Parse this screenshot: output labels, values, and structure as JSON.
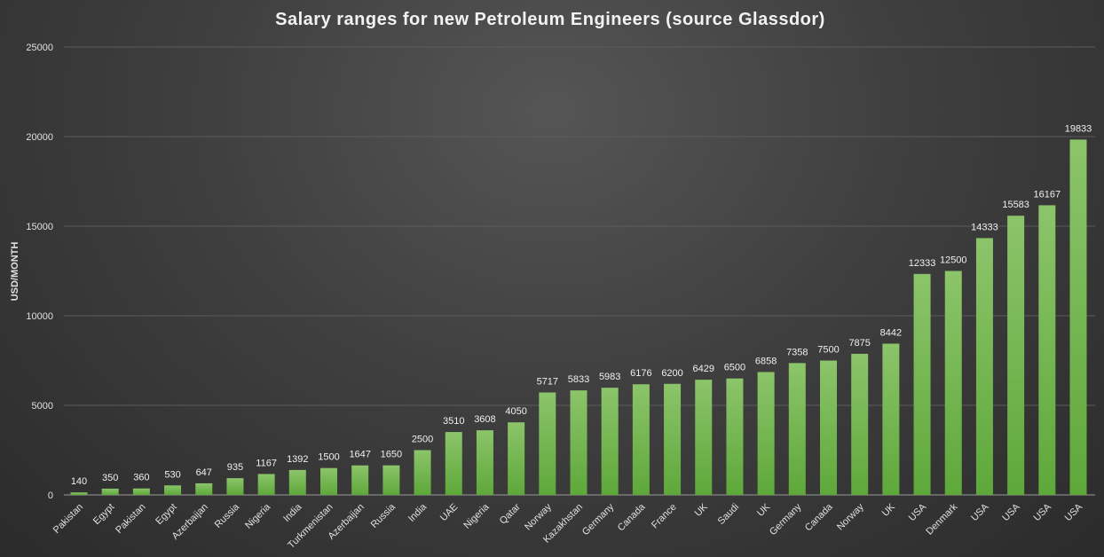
{
  "chart_data": {
    "type": "bar",
    "title": "Salary ranges for new Petroleum Engineers (source Glassdor)",
    "xlabel": "",
    "ylabel": "USD/MONTH",
    "ylim": [
      0,
      25000
    ],
    "yticks": [
      0,
      5000,
      10000,
      15000,
      20000,
      25000
    ],
    "grid": true,
    "data_labels": true,
    "bar_color": "#6fb548",
    "categories": [
      "Pakistan",
      "Egypt",
      "Pakistan",
      "Egypt",
      "Azerbaijan",
      "Russia",
      "Nigeria",
      "India",
      "Turkmenistan",
      "Azerbaijan",
      "Russia",
      "India",
      "UAE",
      "Nigeria",
      "Qatar",
      "Norway",
      "Kazakhstan",
      "Germany",
      "Canada",
      "France",
      "UK",
      "Saudi",
      "UK",
      "Germany",
      "Canada",
      "Norway",
      "UK",
      "USA",
      "Denmark",
      "USA",
      "USA",
      "USA",
      "USA"
    ],
    "values": [
      140,
      350,
      360,
      530,
      647,
      935,
      1167,
      1392,
      1500,
      1647,
      1650,
      2500,
      3510,
      3608,
      4050,
      5717,
      5833,
      5983,
      6176,
      6200,
      6429,
      6500,
      6858,
      7358,
      7500,
      7875,
      8442,
      12333,
      12500,
      14333,
      15583,
      16167,
      19833
    ]
  }
}
